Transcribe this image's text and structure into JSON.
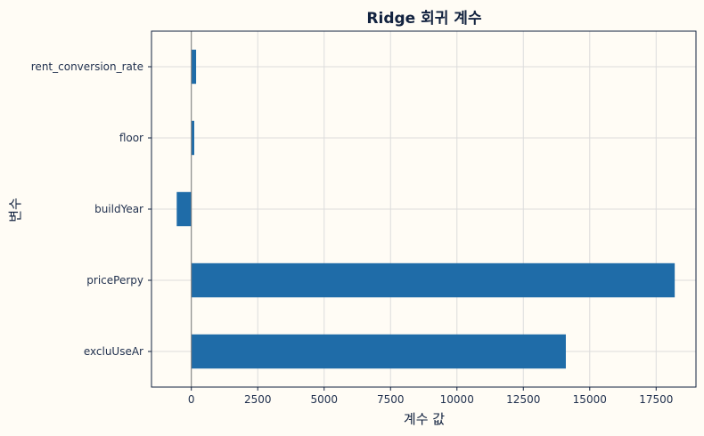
{
  "chart_data": {
    "type": "bar",
    "orientation": "horizontal",
    "title": "Ridge 회귀 계수",
    "xlabel": "계수 값",
    "ylabel": "변수",
    "categories": [
      "excluUseAr",
      "pricePerpy",
      "buildYear",
      "floor",
      "rent_conversion_rate"
    ],
    "values": [
      14100,
      18200,
      -550,
      110,
      180
    ],
    "xlim": [
      -1500,
      19000
    ],
    "xticks": [
      0,
      2500,
      5000,
      7500,
      10000,
      12500,
      15000,
      17500
    ],
    "xtick_labels": [
      "0",
      "2500",
      "5000",
      "7500",
      "10000",
      "12500",
      "15000",
      "17500"
    ],
    "grid": true,
    "zero_line": true,
    "bar_color": "#1f6ca8",
    "background_color": "#fffcf5",
    "frame_color": "#12223f"
  }
}
